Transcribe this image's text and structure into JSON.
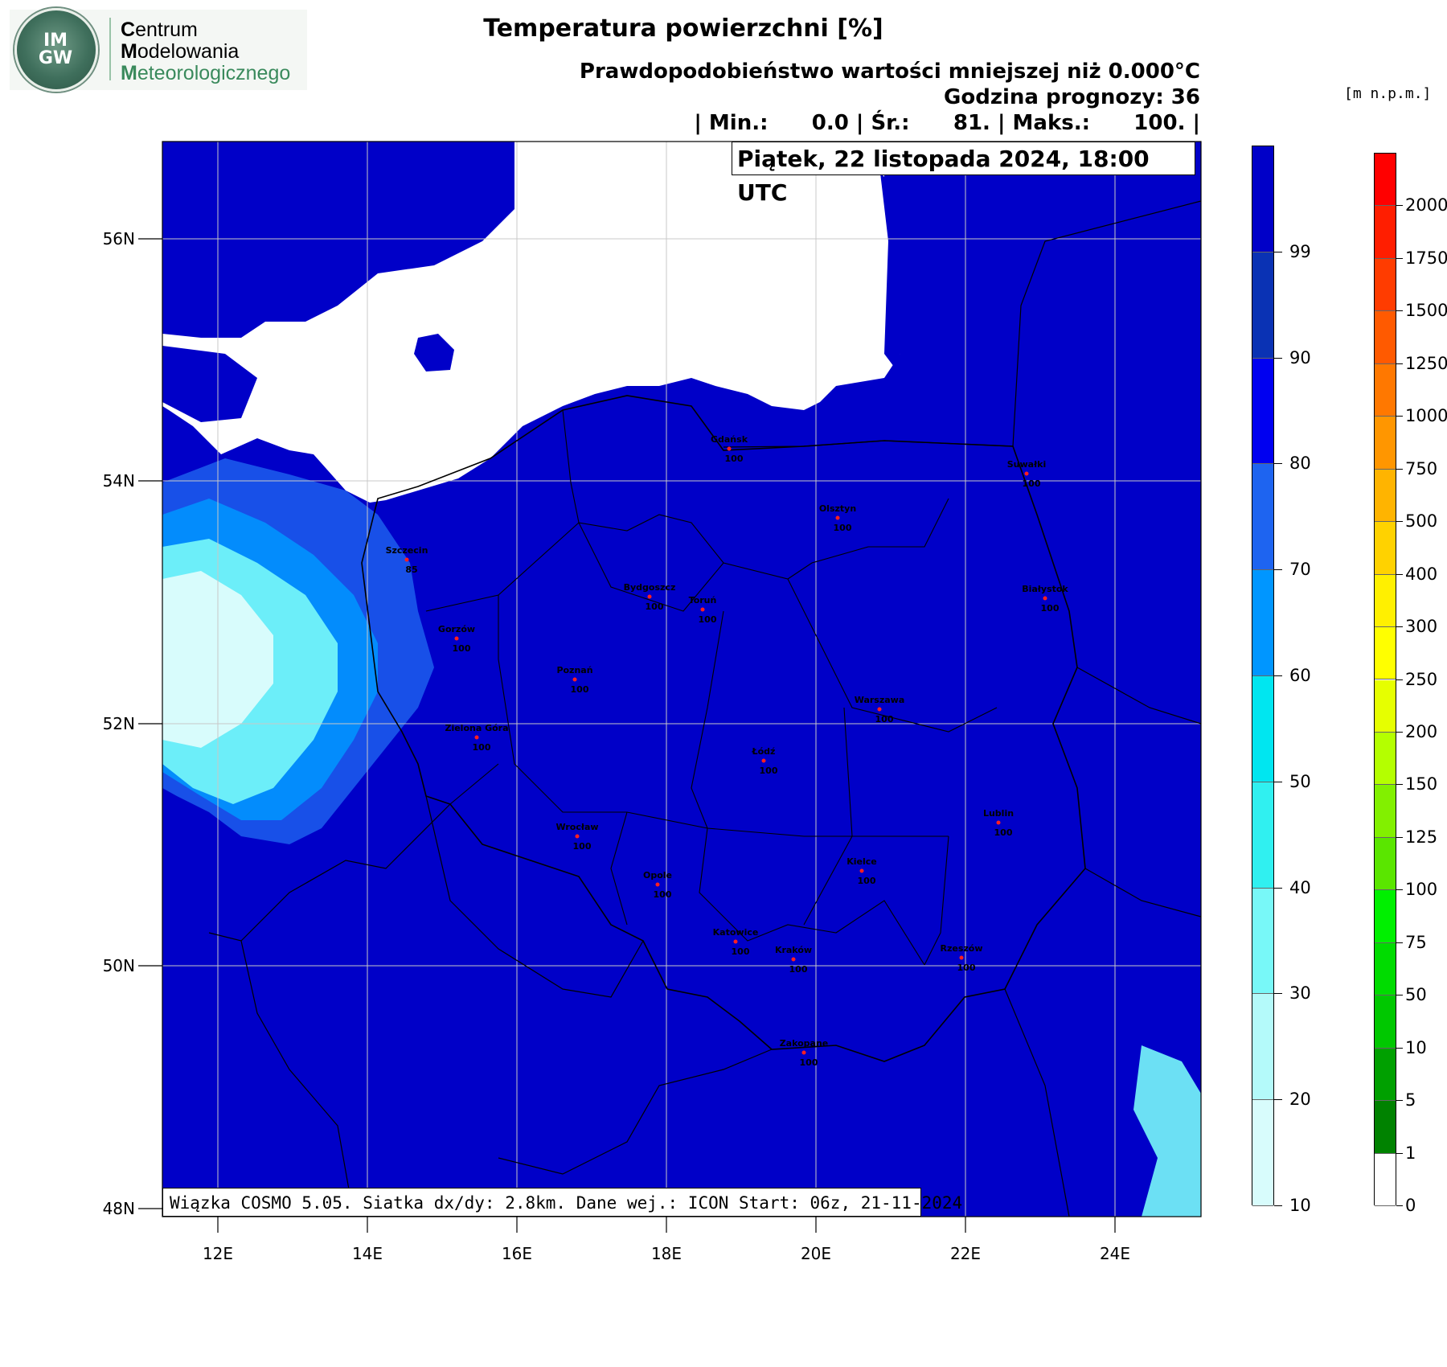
{
  "logo": {
    "acronym_top": "IM",
    "acronym_bottom": "GW",
    "line1_initial": "C",
    "line1_rest": "entrum",
    "line2_initial": "M",
    "line2_rest": "odelowania",
    "line3_initial": "M",
    "line3_rest": "eteorologicznego"
  },
  "header": {
    "title": "Temperatura powierzchni [%]",
    "subtitle": "Prawdopodobieństwo wartości mniejszej niż 0.000°C",
    "forecast_hour": "Godzina prognozy: 36",
    "stats": "| Min.:      0.0 | Śr.:      81. | Maks.:      100. |",
    "date": "Piątek, 22 listopada 2024, 18:00 UTC"
  },
  "elevation_unit": "[m  n.p.m.]",
  "footer_info": "Wiązka COSMO 5.05. Siatka dx/dy: 2.8km. Dane wej.: ICON Start: 06z, 21-11-2024",
  "map": {
    "lat_labels": [
      "56N",
      "54N",
      "52N",
      "50N",
      "48N"
    ],
    "lon_labels": [
      "12E",
      "14E",
      "16E",
      "18E",
      "20E",
      "22E",
      "24E"
    ],
    "cities": [
      {
        "name": "Gdańsk",
        "value": "100"
      },
      {
        "name": "Suwałki",
        "value": "100"
      },
      {
        "name": "Olsztyn",
        "value": "100"
      },
      {
        "name": "Szczecin",
        "value": "85"
      },
      {
        "name": "Bydgoszcz",
        "value": "100"
      },
      {
        "name": "Toruń",
        "value": "100"
      },
      {
        "name": "Białystok",
        "value": "100"
      },
      {
        "name": "Gorzów",
        "value": "100"
      },
      {
        "name": "Poznań",
        "value": "100"
      },
      {
        "name": "Warszawa",
        "value": "100"
      },
      {
        "name": "Zielona Góra",
        "value": "100"
      },
      {
        "name": "Łódź",
        "value": "100"
      },
      {
        "name": "Lublin",
        "value": "100"
      },
      {
        "name": "Wrocław",
        "value": "100"
      },
      {
        "name": "Kielce",
        "value": "100"
      },
      {
        "name": "Opole",
        "value": "100"
      },
      {
        "name": "Katowice",
        "value": "100"
      },
      {
        "name": "Kraków",
        "value": "100"
      },
      {
        "name": "Rzeszów",
        "value": "100"
      },
      {
        "name": "Zakopane",
        "value": "100"
      }
    ]
  },
  "probability_scale": {
    "labels": [
      "99",
      "90",
      "80",
      "70",
      "60",
      "50",
      "40",
      "30",
      "20",
      "10"
    ],
    "colors": [
      "#0000c8",
      "#0a32b4",
      "#0000f0",
      "#1e64f0",
      "#0096ff",
      "#00e6f0",
      "#30f0f0",
      "#78f8f8",
      "#b4fafa",
      "#d8fcfc"
    ]
  },
  "elevation_scale": {
    "labels": [
      "2000",
      "1750",
      "1500",
      "1250",
      "1000",
      "750",
      "500",
      "400",
      "300",
      "250",
      "200",
      "150",
      "125",
      "100",
      "75",
      "50",
      "10",
      "5",
      "1",
      "0"
    ],
    "colors": [
      "#ff0000",
      "#ff1e00",
      "#ff3c00",
      "#ff5a00",
      "#ff7800",
      "#ff9600",
      "#ffb400",
      "#ffd200",
      "#fff000",
      "#ffff00",
      "#e6ff00",
      "#b4ff00",
      "#82f000",
      "#5ae600",
      "#00f000",
      "#00dc00",
      "#00c800",
      "#00a000",
      "#008200",
      "#ffffff"
    ]
  }
}
